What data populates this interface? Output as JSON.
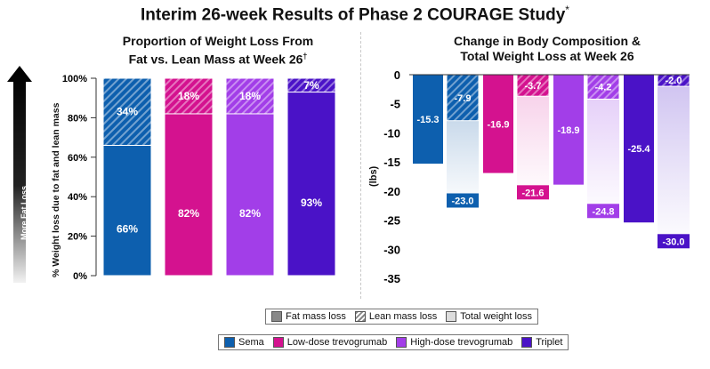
{
  "title": "Interim 26-week Results of Phase 2 COURAGE Study",
  "title_mark": "*",
  "arrow_label": "More Fat Loss",
  "colors": {
    "sema": "#0d5fae",
    "low": "#d4128f",
    "high": "#a23ee8",
    "triplet": "#4a12c7"
  },
  "chart_data": [
    {
      "type": "bar",
      "title": "Proportion of Weight Loss From Fat vs. Lean Mass at Week 26",
      "title_line1": "Proportion of Weight Loss From",
      "title_line2": "Fat vs. Lean Mass at Week 26",
      "title_mark": "†",
      "ylabel": "% Weight loss due to fat and lean mass",
      "ylim": [
        0,
        100
      ],
      "yticks": [
        "0%",
        "20%",
        "40%",
        "60%",
        "80%",
        "100%"
      ],
      "stacked": true,
      "categories": [
        "Sema",
        "Low-dose trevogrumab",
        "High-dose trevogrumab",
        "Triplet"
      ],
      "series": [
        {
          "name": "Fat mass loss",
          "values": [
            66,
            82,
            82,
            93
          ],
          "labels": [
            "66%",
            "82%",
            "82%",
            "93%"
          ]
        },
        {
          "name": "Lean mass loss",
          "values": [
            34,
            18,
            18,
            7
          ],
          "labels": [
            "34%",
            "18%",
            "18%",
            "7%"
          ]
        }
      ]
    },
    {
      "type": "bar",
      "title": "Change in Body Composition & Total Weight Loss at Week 26",
      "title_line1": "Change in Body Composition &",
      "title_line2": "Total Weight Loss at Week 26",
      "ylabel": "(lbs)",
      "ylim": [
        -35,
        0
      ],
      "yticks": [
        "0",
        "-5",
        "-10",
        "-15",
        "-20",
        "-25",
        "-30",
        "-35"
      ],
      "categories": [
        "Sema",
        "Low-dose trevogrumab",
        "High-dose trevogrumab",
        "Triplet"
      ],
      "series": [
        {
          "name": "Fat mass loss",
          "values": [
            -15.3,
            -16.9,
            -18.9,
            -25.4
          ],
          "labels": [
            "-15.3",
            "-16.9",
            "-18.9",
            "-25.4"
          ]
        },
        {
          "name": "Lean mass loss",
          "values": [
            -7.9,
            -3.7,
            -4.2,
            -2.0
          ],
          "labels": [
            "-7.9",
            "-3.7",
            "-4.2",
            "-2.0"
          ]
        },
        {
          "name": "Total weight loss",
          "values": [
            -23.0,
            -21.6,
            -24.8,
            -30.0
          ],
          "labels": [
            "-23.0",
            "-21.6",
            "-24.8",
            "-30.0"
          ]
        }
      ]
    }
  ],
  "legend_mass": {
    "fat": "Fat mass loss",
    "lean": "Lean mass loss",
    "total": "Total weight loss"
  },
  "legend_drug": {
    "sema": "Sema",
    "low": "Low-dose trevogrumab",
    "high": "High-dose trevogrumab",
    "triplet": "Triplet"
  }
}
